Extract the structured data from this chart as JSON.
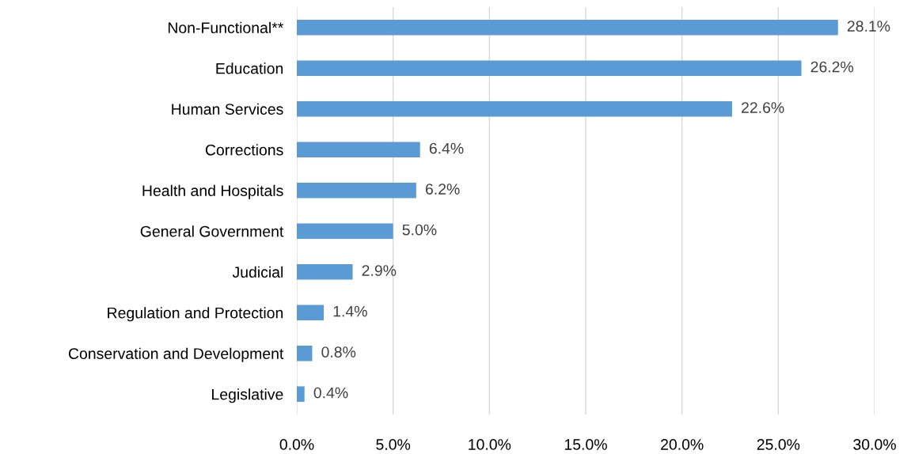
{
  "chart_data": {
    "type": "bar",
    "orientation": "horizontal",
    "categories": [
      "Non-Functional**",
      "Education",
      "Human Services",
      "Corrections",
      "Health and Hospitals",
      "General Government",
      "Judicial",
      "Regulation and Protection",
      "Conservation and Development",
      "Legislative"
    ],
    "values": [
      28.1,
      26.2,
      22.6,
      6.4,
      6.2,
      5.0,
      2.9,
      1.4,
      0.8,
      0.4
    ],
    "value_labels": [
      "28.1%",
      "26.2%",
      "22.6%",
      "6.4%",
      "6.2%",
      "5.0%",
      "2.9%",
      "1.4%",
      "0.8%",
      "0.4%"
    ],
    "color": "#5b9bd5",
    "xlim": [
      0,
      30
    ],
    "xticks": [
      {
        "value": 0,
        "label": "0.0%"
      },
      {
        "value": 5,
        "label": "5.0%"
      },
      {
        "value": 10,
        "label": "10.0%"
      },
      {
        "value": 15,
        "label": "15.0%"
      },
      {
        "value": 20,
        "label": "20.0%"
      },
      {
        "value": 25,
        "label": "25.0%"
      },
      {
        "value": 30,
        "label": "30.0%"
      }
    ],
    "grid": "x",
    "legend": false
  }
}
